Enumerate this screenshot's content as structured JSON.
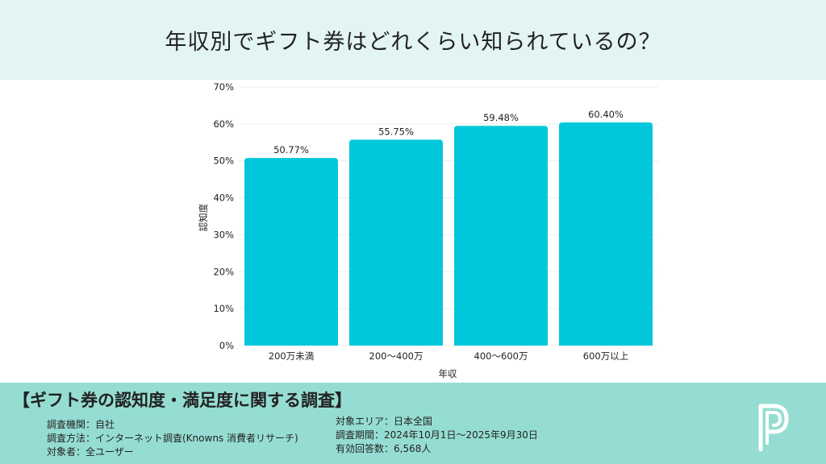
{
  "header": {
    "title": "年収別でギフト券はどれくらい知られているの？"
  },
  "chart_data": {
    "type": "bar",
    "title": "年収別でギフト券はどれくらい知られているの？",
    "categories": [
      "200万未満",
      "200〜400万",
      "400〜600万",
      "600万以上"
    ],
    "values": [
      50.77,
      55.75,
      59.48,
      60.4
    ],
    "value_labels": [
      "50.77%",
      "55.75%",
      "59.48%",
      "60.40%"
    ],
    "xlabel": "年収",
    "ylabel": "認知度",
    "ylim": [
      0,
      70
    ],
    "yticks": [
      0,
      10,
      20,
      30,
      40,
      50,
      60,
      70
    ],
    "ytick_labels": [
      "0%",
      "10%",
      "20%",
      "30%",
      "40%",
      "50%",
      "60%",
      "70%"
    ],
    "bar_color": "#00c8da",
    "grid": true
  },
  "footer": {
    "title": "【ギフト券の認知度・満足度に関する調査】",
    "left_items": [
      "調査機関：自社",
      "調査方法：インターネット調査(Knowns 消費者リサーチ)",
      "対象者：全ユーザー"
    ],
    "right_items": [
      "対象エリア：日本全国",
      "調査期間：2024年10月1日〜2025年9月30日",
      "有効回答数：6,568人"
    ],
    "logo_icon": "p-logo-icon"
  },
  "colors": {
    "header_bg": "#e3f5f3",
    "footer_bg": "#95ddd2",
    "bar": "#00c8da"
  }
}
